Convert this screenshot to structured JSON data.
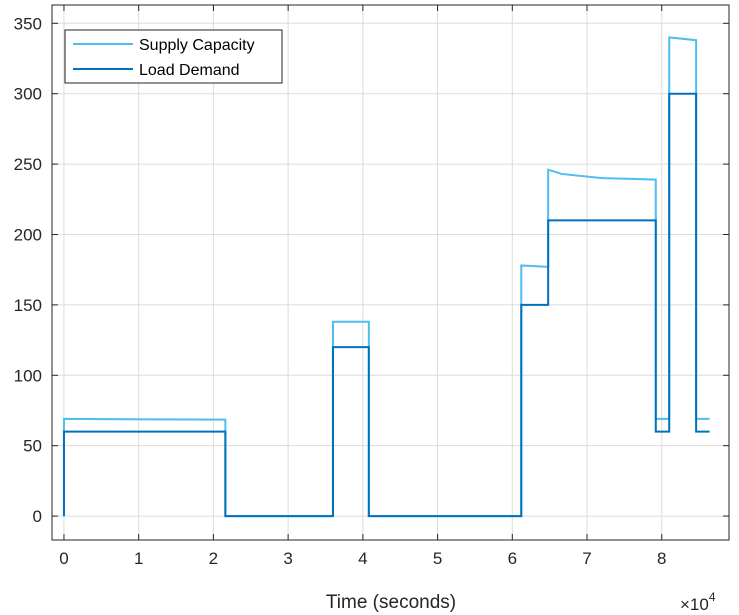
{
  "chart_data": {
    "type": "line",
    "title": "",
    "xlabel": "Time (seconds)",
    "ylabel": "",
    "x_exponent_label": "×10",
    "x_exponent_power": "4",
    "xlim": [
      -1600,
      89000
    ],
    "ylim": [
      -17,
      363
    ],
    "x_ticks": [
      0,
      10000,
      20000,
      30000,
      40000,
      50000,
      60000,
      70000,
      80000
    ],
    "x_tick_labels": [
      "0",
      "1",
      "2",
      "3",
      "4",
      "5",
      "6",
      "7",
      "8"
    ],
    "y_ticks": [
      0,
      50,
      100,
      150,
      200,
      250,
      300,
      350
    ],
    "y_tick_labels": [
      "0",
      "50",
      "100",
      "150",
      "200",
      "250",
      "300",
      "350"
    ],
    "grid": true,
    "legend_position": "top-left",
    "series": [
      {
        "name": "Supply Capacity",
        "color": "#4dbeee",
        "x": [
          0,
          0,
          21600,
          21600,
          36000,
          36000,
          40800,
          40800,
          61200,
          61200,
          64800,
          64800,
          66600,
          72000,
          79200,
          79200,
          81000,
          81000,
          84600,
          84600,
          86400
        ],
        "y": [
          0,
          69,
          68.5,
          0,
          0,
          138,
          138,
          0,
          0,
          178,
          177,
          246,
          243,
          240,
          239,
          69,
          69,
          340,
          338,
          69,
          69
        ]
      },
      {
        "name": "Load Demand",
        "color": "#0072bd",
        "x": [
          0,
          0,
          21600,
          21600,
          36000,
          36000,
          40800,
          40800,
          61200,
          61200,
          64800,
          64800,
          79200,
          79200,
          81000,
          81000,
          84600,
          84600,
          86400
        ],
        "y": [
          0,
          60,
          60,
          0,
          0,
          120,
          120,
          0,
          0,
          150,
          150,
          210,
          210,
          60,
          60,
          300,
          300,
          60,
          60
        ]
      }
    ]
  }
}
